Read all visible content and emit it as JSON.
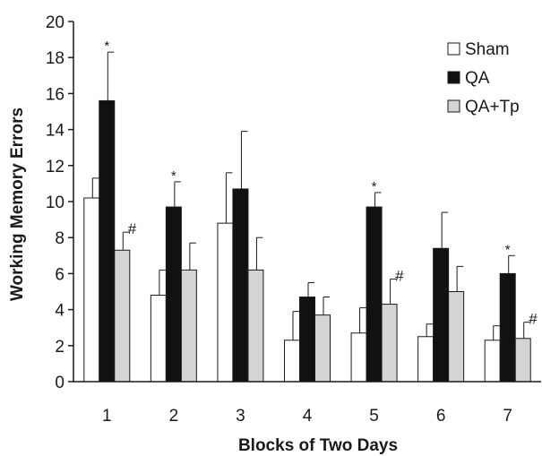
{
  "chart_data": {
    "type": "bar",
    "title": "",
    "xlabel": "Blocks of Two Days",
    "ylabel": "Working Memory Errors",
    "ylim": [
      0,
      20
    ],
    "yticks": [
      "0",
      "2",
      "4",
      "6",
      "8",
      "10",
      "12",
      "14",
      "16",
      "18",
      "20"
    ],
    "categories": [
      "1",
      "2",
      "3",
      "4",
      "5",
      "6",
      "7"
    ],
    "series": [
      {
        "name": "Sham",
        "color": "#ffffff",
        "values": [
          10.2,
          4.8,
          8.8,
          2.3,
          2.7,
          2.5,
          2.3
        ],
        "errors": [
          1.1,
          1.4,
          2.8,
          1.6,
          1.4,
          0.7,
          0.8
        ],
        "annotations": [
          "",
          "",
          "",
          "",
          "",
          "",
          ""
        ]
      },
      {
        "name": "QA",
        "color": "#111111",
        "values": [
          15.6,
          9.7,
          10.7,
          4.7,
          9.7,
          7.4,
          6.0
        ],
        "errors": [
          2.7,
          1.4,
          3.2,
          0.8,
          0.8,
          2.0,
          1.0
        ],
        "annotations": [
          "*",
          "*",
          "",
          "",
          "*",
          "",
          "*"
        ]
      },
      {
        "name": "QA+Tp",
        "color": "#d4d4d4",
        "values": [
          7.3,
          6.2,
          6.2,
          3.7,
          4.3,
          5.0,
          2.4
        ],
        "errors": [
          1.0,
          1.5,
          1.8,
          1.0,
          1.4,
          1.4,
          0.9
        ],
        "annotations": [
          "#",
          "",
          "",
          "",
          "#",
          "",
          "#"
        ]
      }
    ],
    "legend_position": "top-right",
    "grid": false
  }
}
